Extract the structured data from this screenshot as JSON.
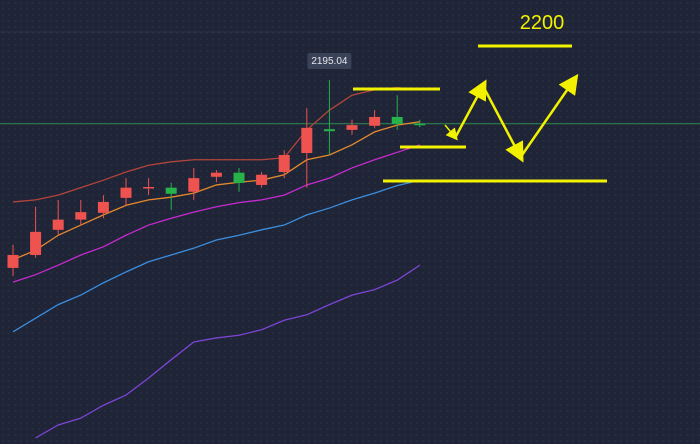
{
  "chart_data": {
    "type": "candlestick",
    "categories": [
      null,
      null,
      null,
      null,
      null,
      null,
      null,
      null,
      null,
      null,
      null,
      null,
      null,
      null,
      null,
      null,
      null,
      null,
      null
    ],
    "open": [
      2167.4,
      2169.3,
      2173.0,
      2174.5,
      2175.5,
      2177.7,
      2179.2,
      2179.2,
      2178.6,
      2180.8,
      2181.4,
      2179.6,
      2181.5,
      2184.3,
      2187.8,
      2187.7,
      2188.3,
      2189.6,
      2188.6
    ],
    "high": [
      2170.8,
      2176.4,
      2177.4,
      2177.4,
      2178.1,
      2180.6,
      2180.6,
      2179.9,
      2182.1,
      2181.8,
      2182.1,
      2181.5,
      2184.7,
      2190.9,
      2195.04,
      2189.2,
      2190.6,
      2192.8,
      2189.2
    ],
    "low": [
      2166.2,
      2168.9,
      2172.2,
      2173.7,
      2174.7,
      2176.6,
      2178.1,
      2175.9,
      2177.4,
      2180.0,
      2178.6,
      2179.2,
      2180.6,
      2179.2,
      2184.0,
      2187.0,
      2188.0,
      2187.7,
      2188.1
    ],
    "close": [
      2169.3,
      2172.7,
      2174.5,
      2175.6,
      2177.1,
      2179.2,
      2179.3,
      2178.3,
      2180.6,
      2181.4,
      2179.9,
      2181.1,
      2184.0,
      2188.0,
      2187.5,
      2188.4,
      2189.6,
      2188.6,
      2188.6
    ],
    "up_color": "#ef5350",
    "down_color": "#27b24a",
    "price_line_color": "#2f8a4e",
    "ylim": [
      2141.5,
      2206.8
    ],
    "lines": [
      {
        "color": "#b3453c",
        "values": [
          2177.1,
          2177.4,
          2178.1,
          2179.2,
          2180.3,
          2181.5,
          2182.5,
          2183.0,
          2183.3,
          2183.3,
          2183.3,
          2183.3,
          2183.6,
          2187.7,
          2190.6,
          2192.8,
          2193.6,
          2193.9,
          2193.6
        ]
      },
      {
        "color": "#e58a2c",
        "values": [
          2168.6,
          2170.0,
          2172.2,
          2173.7,
          2175.2,
          2176.6,
          2177.4,
          2177.8,
          2178.4,
          2179.6,
          2180.0,
          2180.3,
          2181.1,
          2183.3,
          2184.0,
          2185.5,
          2187.4,
          2188.4,
          2188.9
        ]
      },
      {
        "color": "#c82ad2",
        "values": [
          2165.3,
          2166.4,
          2167.8,
          2169.3,
          2170.5,
          2172.2,
          2173.7,
          2174.7,
          2175.6,
          2176.4,
          2177.0,
          2177.4,
          2178.1,
          2179.6,
          2180.6,
          2182.1,
          2183.3,
          2184.4,
          2185.5
        ]
      },
      {
        "color": "#3b8ee0",
        "values": [
          2158.0,
          2160.0,
          2162.0,
          2163.4,
          2165.2,
          2166.8,
          2168.3,
          2169.3,
          2170.3,
          2171.5,
          2172.2,
          2173.0,
          2173.7,
          2175.2,
          2176.2,
          2177.4,
          2178.4,
          2179.5,
          2180.3
        ]
      },
      {
        "color": "#7b45d6",
        "values": [
          null,
          2142.4,
          2144.3,
          2145.3,
          2147.2,
          2148.7,
          2151.2,
          2153.9,
          2156.5,
          2157.1,
          2157.5,
          2158.3,
          2159.7,
          2160.5,
          2162.0,
          2163.4,
          2164.2,
          2165.6,
          2167.8
        ]
      }
    ],
    "annotations": [
      "2200"
    ]
  }
}
